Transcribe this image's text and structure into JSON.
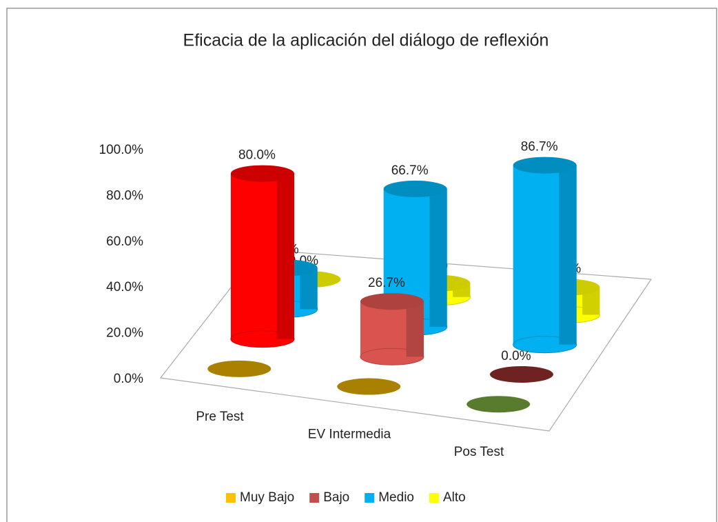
{
  "chart_data": {
    "type": "bar3d",
    "title": "Eficacia de la aplicación del diálogo de reflexión",
    "categories": [
      "Pre Test",
      "EV Intermedia",
      "Pos Test"
    ],
    "series": [
      {
        "name": "Muy Bajo",
        "color": "#ffc000",
        "point_colors": [
          "#d4a000",
          "#d4a000",
          "#6e9a38"
        ],
        "values": [
          0,
          0,
          0
        ]
      },
      {
        "name": "Bajo",
        "color": "#c0504d",
        "point_colors": [
          "#ff0000",
          "#d9534f",
          "#8b2b2b"
        ],
        "values": [
          80,
          26.7,
          0
        ],
        "value_labels": [
          "80.0%",
          "26.7%",
          "0.0%"
        ]
      },
      {
        "name": "Medio",
        "color": "#00b0f0",
        "values": [
          20,
          66.7,
          86.7
        ],
        "value_labels": [
          "20.0%",
          "66.7%",
          "86.7%"
        ]
      },
      {
        "name": "Alto",
        "color": "#ffff00",
        "values": [
          0,
          6.7,
          13.3
        ],
        "value_labels": [
          "0.0%",
          "6.7%",
          "13.3%"
        ]
      }
    ],
    "ylim": [
      0,
      100
    ],
    "yticks": [
      {
        "value": 0,
        "label": "0.0%"
      },
      {
        "value": 20,
        "label": "20.0%"
      },
      {
        "value": 40,
        "label": "40.0%"
      },
      {
        "value": 60,
        "label": "60.0%"
      },
      {
        "value": 80,
        "label": "80.0%"
      },
      {
        "value": 100,
        "label": "100.0%"
      }
    ],
    "legend": "bottom"
  }
}
